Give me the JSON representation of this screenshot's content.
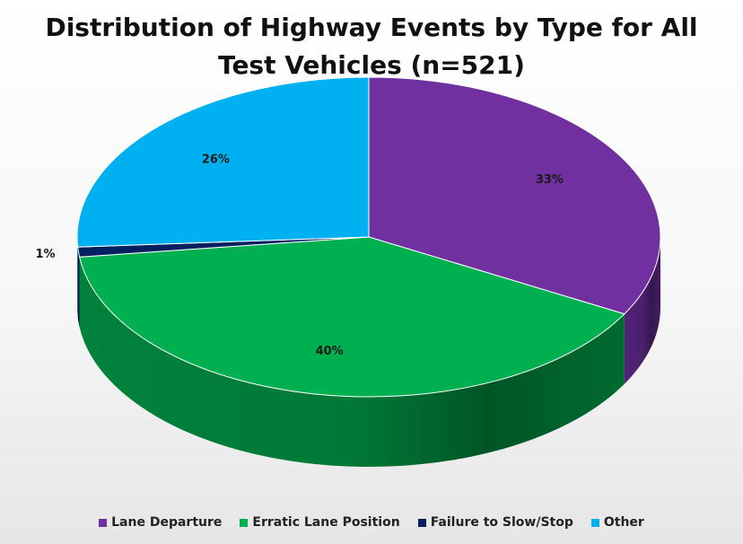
{
  "chart_data": {
    "type": "pie",
    "title_lines": [
      "Distribution of Highway Events by Type for All",
      "Test Vehicles (n=521)"
    ],
    "categories": [
      "Lane Departure",
      "Erratic Lane Position",
      "Failure to Slow/Stop",
      "Other"
    ],
    "values": [
      33,
      40,
      1,
      26
    ],
    "data_labels": [
      "33%",
      "40%",
      "1%",
      "26%"
    ],
    "colors": [
      "#7030A0",
      "#00B050",
      "#002060",
      "#00B0F0"
    ],
    "legend_position": "bottom",
    "style": "3d"
  }
}
